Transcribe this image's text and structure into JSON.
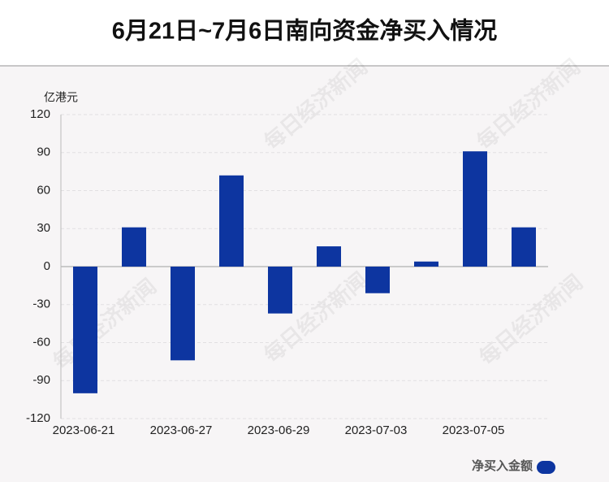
{
  "chart_data": {
    "type": "bar",
    "title": "6月21日~7月6日南向资金净买入情况",
    "y_unit": "亿港元",
    "watermark": "每日经济新闻",
    "categories": [
      "2023-06-21",
      null,
      "2023-06-27",
      null,
      "2023-06-29",
      null,
      "2023-07-03",
      null,
      "2023-07-05",
      null
    ],
    "series": [
      {
        "name": "净买入金额",
        "color": "#0d35a0",
        "values": [
          -100,
          31,
          -74,
          72,
          -37,
          16,
          -21,
          4,
          91,
          31
        ]
      }
    ],
    "ylim": [
      -120,
      120
    ],
    "yticks": [
      -120,
      -90,
      -60,
      -30,
      0,
      30,
      60,
      90,
      120
    ],
    "grid": true
  }
}
